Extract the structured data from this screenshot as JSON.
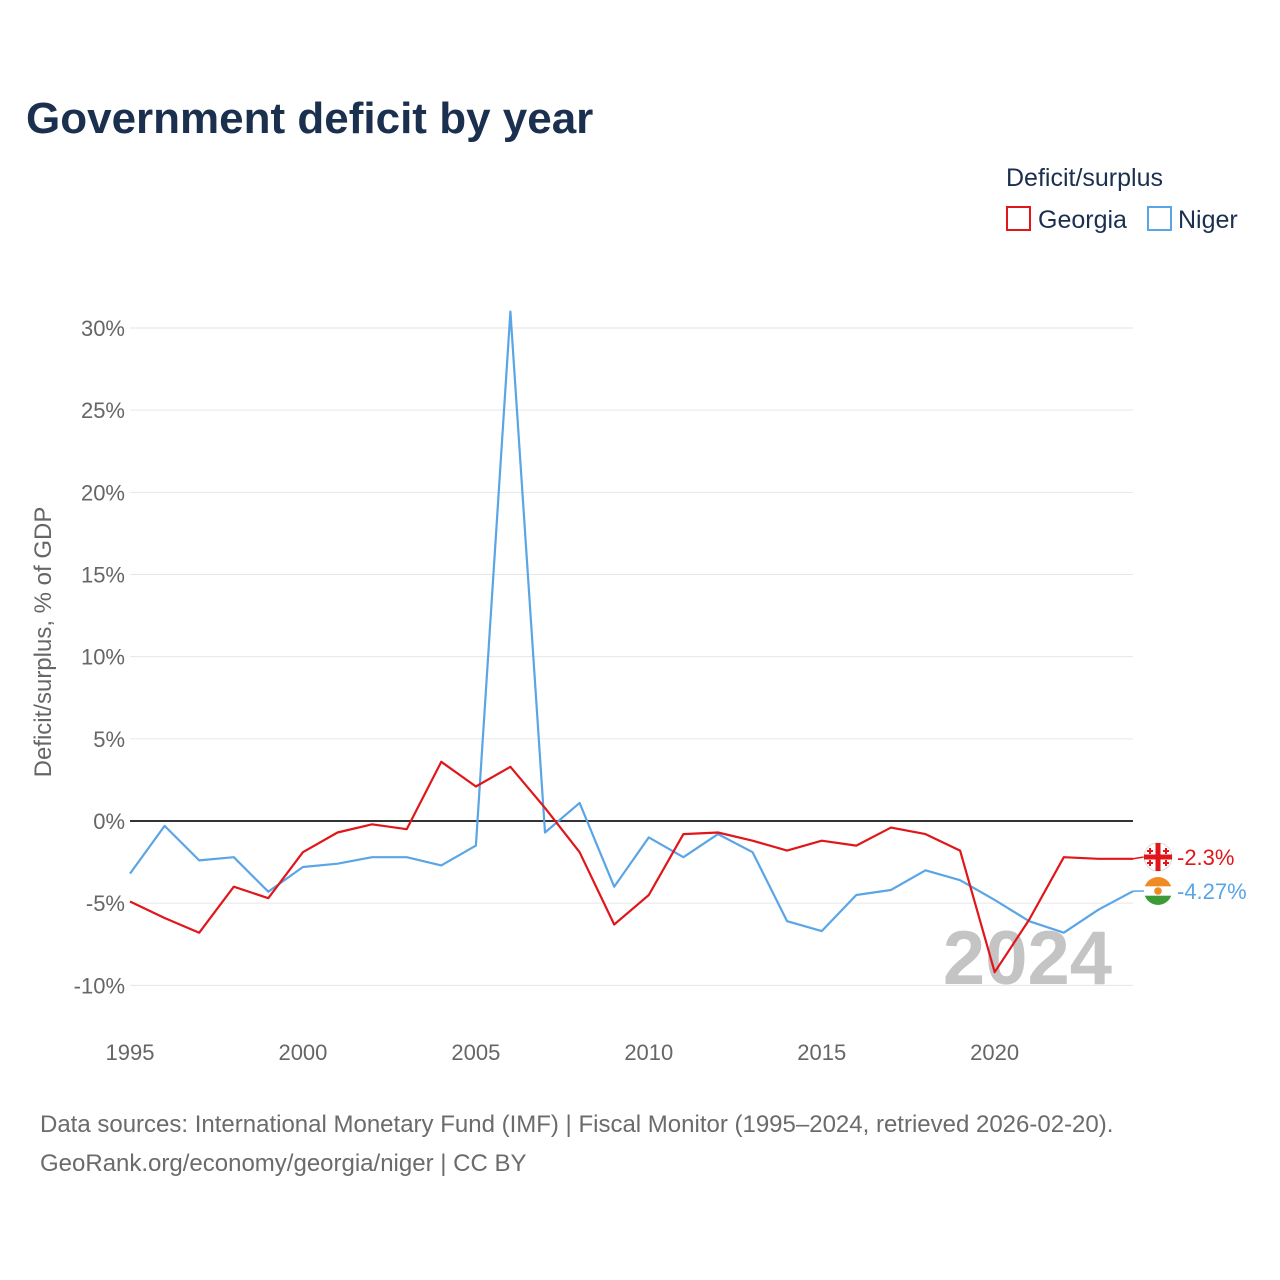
{
  "title": "Government deficit by year",
  "watermark_year": "2024",
  "legend": {
    "title": "Deficit/surplus",
    "items": [
      {
        "label": "Georgia",
        "color": "#e0161a"
      },
      {
        "label": "Niger",
        "color": "#5aa5e6"
      }
    ]
  },
  "source": {
    "line1": "Data sources: International Monetary Fund (IMF) | Fiscal Monitor (1995–2024, retrieved 2026-02-20).",
    "line2": "GeoRank.org/economy/georgia/niger | CC BY"
  },
  "chart_data": {
    "type": "line",
    "ylabel": "Deficit/surplus, % of GDP",
    "xlabel": "",
    "xlim": [
      1995,
      2024
    ],
    "ylim": [
      -12,
      32
    ],
    "x_ticks": [
      1995,
      2000,
      2005,
      2010,
      2015,
      2020
    ],
    "x_tick_labels": [
      "1995",
      "2000",
      "2005",
      "2010",
      "2015",
      "2020"
    ],
    "y_ticks": [
      -10,
      -5,
      0,
      5,
      10,
      15,
      20,
      25,
      30
    ],
    "y_tick_labels": [
      "-10%",
      "-5%",
      "0%",
      "5%",
      "10%",
      "15%",
      "20%",
      "25%",
      "30%"
    ],
    "x": [
      1995,
      1996,
      1997,
      1998,
      1999,
      2000,
      2001,
      2002,
      2003,
      2004,
      2005,
      2006,
      2007,
      2008,
      2009,
      2010,
      2011,
      2012,
      2013,
      2014,
      2015,
      2016,
      2017,
      2018,
      2019,
      2020,
      2021,
      2022,
      2023,
      2024
    ],
    "series": [
      {
        "name": "Georgia",
        "color": "#e0161a",
        "end_label": "-2.3%",
        "values": [
          -4.9,
          -5.9,
          -6.8,
          -4.0,
          -4.7,
          -1.9,
          -0.7,
          -0.2,
          -0.5,
          3.6,
          2.1,
          3.3,
          0.8,
          -1.9,
          -6.3,
          -4.5,
          -0.8,
          -0.7,
          -1.2,
          -1.8,
          -1.2,
          -1.5,
          -0.4,
          -0.8,
          -1.8,
          -9.2,
          -6.0,
          -2.2,
          -2.3,
          -2.3
        ]
      },
      {
        "name": "Niger",
        "color": "#5aa5e6",
        "end_label": "-4.27%",
        "values": [
          -3.2,
          -0.3,
          -2.4,
          -2.2,
          -4.3,
          -2.8,
          -2.6,
          -2.2,
          -2.2,
          -2.7,
          -1.5,
          31.0,
          -0.7,
          1.1,
          -4.0,
          -1.0,
          -2.2,
          -0.8,
          -1.9,
          -6.1,
          -6.7,
          -4.5,
          -4.2,
          -3.0,
          -3.6,
          -4.8,
          -6.1,
          -6.8,
          -5.4,
          -4.27
        ]
      }
    ]
  }
}
